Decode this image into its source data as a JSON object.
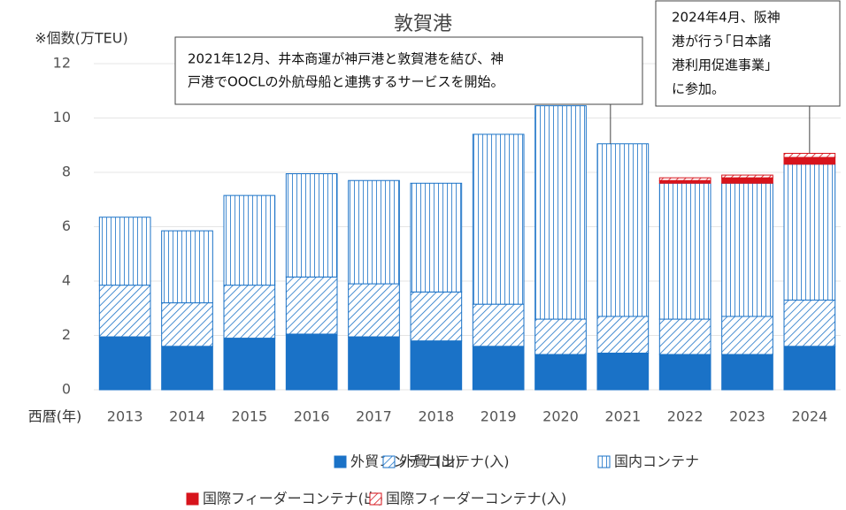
{
  "chart_data": {
    "type": "bar",
    "stacked": true,
    "title": "敦賀港",
    "ylabel": "※個数(万TEU)",
    "xlabel": "西暦(年)",
    "categories": [
      "2013",
      "2014",
      "2015",
      "2016",
      "2017",
      "2018",
      "2019",
      "2020",
      "2021",
      "2022",
      "2023",
      "2024"
    ],
    "series": [
      {
        "name": "外貿コンテナ(出)",
        "color": "#1a72c7",
        "pattern": "solid",
        "values": [
          1.95,
          1.6,
          1.9,
          2.05,
          1.95,
          1.8,
          1.6,
          1.3,
          1.35,
          1.3,
          1.3,
          1.6
        ]
      },
      {
        "name": "外貿コンテナ(入)",
        "color": "#1a72c7",
        "pattern": "diagonal",
        "values": [
          1.9,
          1.6,
          1.95,
          2.1,
          1.95,
          1.8,
          1.55,
          1.3,
          1.35,
          1.3,
          1.4,
          1.7
        ]
      },
      {
        "name": "国内コンテナ",
        "color": "#1a72c7",
        "pattern": "vertical",
        "values": [
          2.5,
          2.65,
          3.3,
          3.8,
          3.8,
          4.0,
          6.25,
          7.85,
          6.35,
          5.0,
          4.9,
          5.0
        ]
      },
      {
        "name": "国際フィーダーコンテナ(出)",
        "color": "#d7141c",
        "pattern": "solid",
        "values": [
          null,
          null,
          null,
          null,
          null,
          null,
          null,
          null,
          null,
          0.1,
          0.2,
          0.25
        ]
      },
      {
        "name": "国際フィーダーコンテナ(入)",
        "color": "#d7141c",
        "pattern": "diagonal",
        "values": [
          null,
          null,
          null,
          null,
          null,
          null,
          null,
          null,
          null,
          0.1,
          0.1,
          0.15
        ]
      }
    ],
    "ylim": [
      0,
      12
    ],
    "yticks": [
      0,
      2,
      4,
      6,
      8,
      10,
      12
    ],
    "grid": true,
    "legend": "bottom",
    "annotations": [
      {
        "lines": [
          "2021年12月、井本商運が神戸港と敦賀港を結び、神",
          "戸港でOOCLの外航母船と連携するサービスを開始。"
        ],
        "category": 8
      },
      {
        "lines": [
          "2024年4月、阪神",
          "港が行う｢日本諸",
          "港利用促進事業｣",
          "に参加。"
        ],
        "category": 11
      }
    ]
  }
}
